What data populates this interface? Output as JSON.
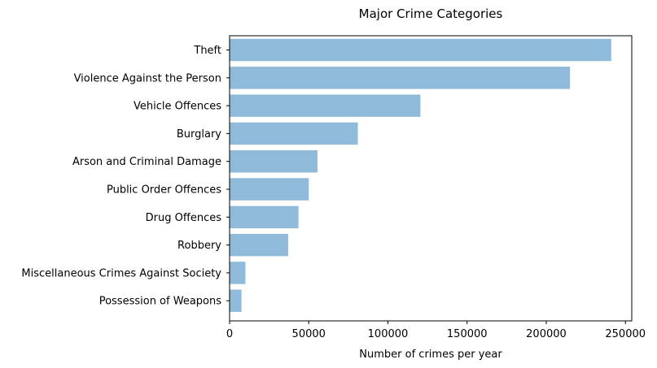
{
  "chart_data": {
    "type": "bar",
    "orientation": "horizontal",
    "title": "Major Crime Categories",
    "xlabel": "Number of crimes per year",
    "ylabel": "",
    "xlim": [
      0,
      254000
    ],
    "xticks": [
      0,
      50000,
      100000,
      150000,
      200000,
      250000
    ],
    "xtick_labels": [
      "0",
      "50000",
      "100000",
      "150000",
      "200000",
      "250000"
    ],
    "categories": [
      "Theft",
      "Violence Against the Person",
      "Vehicle Offences",
      "Burglary",
      "Arson and Criminal Damage",
      "Public Order Offences",
      "Drug Offences",
      "Robbery",
      "Miscellaneous Crimes Against Society",
      "Possession of Weapons"
    ],
    "values": [
      241000,
      215000,
      120500,
      81000,
      55500,
      50000,
      43500,
      37000,
      10000,
      7500
    ],
    "bar_color": "#8fbad9",
    "grid": false,
    "legend": "none"
  }
}
